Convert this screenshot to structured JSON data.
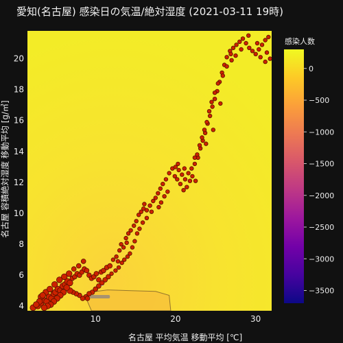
{
  "chart_data": {
    "type": "scatter",
    "title": "愛知(名古屋) 感染日の気温/絶対湿度 (2021-03-11 19時)",
    "xlabel": "名古屋 平均気温 移動平均 [℃]",
    "ylabel": "名古屋 容積絶対湿度 移動平均 [g/㎥]",
    "xlim": [
      1.5,
      32
    ],
    "ylim": [
      3.7,
      21.8
    ],
    "x_ticks": [
      10,
      20,
      30
    ],
    "y_ticks": [
      4,
      6,
      8,
      10,
      12,
      14,
      16,
      18,
      20
    ],
    "grid": false,
    "background_contour": {
      "type": "contour",
      "colorscale": [
        "#0d0887",
        "#46039f",
        "#7201a8",
        "#9c179e",
        "#bd3786",
        "#d8576b",
        "#ed7953",
        "#fb9f3a",
        "#fdca26",
        "#f0f921"
      ],
      "zmin": -3700,
      "zmax": 300,
      "colorbar_title": "感染人数",
      "colorbar_ticks": [
        0,
        -500,
        -1000,
        -1500,
        -2000,
        -2500,
        -3000,
        -3500
      ],
      "contour_label": "0"
    },
    "marker_color": "#cc2200",
    "marker_edge": "#551100",
    "points": [
      [
        2.2,
        3.9
      ],
      [
        2.8,
        4.0
      ],
      [
        3.2,
        4.2
      ],
      [
        3.5,
        4.4
      ],
      [
        3.9,
        4.3
      ],
      [
        4.2,
        4.6
      ],
      [
        4.5,
        4.5
      ],
      [
        4.8,
        4.8
      ],
      [
        5.0,
        4.9
      ],
      [
        5.3,
        5.1
      ],
      [
        5.6,
        5.0
      ],
      [
        5.9,
        5.3
      ],
      [
        6.2,
        5.4
      ],
      [
        6.5,
        5.6
      ],
      [
        6.8,
        5.5
      ],
      [
        7.1,
        5.8
      ],
      [
        7.4,
        5.9
      ],
      [
        7.7,
        6.1
      ],
      [
        8.0,
        6.0
      ],
      [
        8.3,
        6.2
      ],
      [
        8.6,
        6.4
      ],
      [
        8.9,
        6.3
      ],
      [
        9.2,
        6.0
      ],
      [
        9.5,
        5.8
      ],
      [
        9.8,
        5.9
      ],
      [
        10.1,
        6.1
      ],
      [
        10.4,
        5.7
      ],
      [
        10.7,
        6.2
      ],
      [
        11.0,
        6.3
      ],
      [
        11.4,
        6.5
      ],
      [
        11.8,
        6.6
      ],
      [
        12.2,
        7.0
      ],
      [
        12.6,
        7.2
      ],
      [
        13.0,
        7.6
      ],
      [
        13.2,
        8.0
      ],
      [
        13.5,
        7.8
      ],
      [
        13.8,
        8.4
      ],
      [
        14.1,
        8.7
      ],
      [
        14.4,
        8.9
      ],
      [
        14.8,
        9.2
      ],
      [
        15.1,
        9.5
      ],
      [
        15.4,
        9.9
      ],
      [
        15.7,
        10.1
      ],
      [
        16.0,
        10.3
      ],
      [
        16.4,
        10.2
      ],
      [
        16.8,
        10.5
      ],
      [
        17.2,
        10.8
      ],
      [
        17.5,
        11.0
      ],
      [
        17.8,
        11.3
      ],
      [
        18.1,
        11.6
      ],
      [
        18.4,
        11.9
      ],
      [
        18.8,
        12.2
      ],
      [
        19.2,
        12.6
      ],
      [
        19.6,
        12.9
      ],
      [
        20.0,
        13.0
      ],
      [
        20.4,
        12.8
      ],
      [
        20.8,
        12.5
      ],
      [
        21.2,
        12.2
      ],
      [
        21.6,
        12.6
      ],
      [
        22.0,
        12.9
      ],
      [
        22.4,
        13.2
      ],
      [
        22.8,
        13.6
      ],
      [
        23.1,
        14.2
      ],
      [
        23.4,
        14.7
      ],
      [
        23.7,
        15.2
      ],
      [
        24.0,
        15.8
      ],
      [
        24.3,
        16.3
      ],
      [
        24.6,
        16.9
      ],
      [
        24.9,
        17.4
      ],
      [
        25.2,
        17.9
      ],
      [
        25.5,
        18.5
      ],
      [
        25.8,
        19.1
      ],
      [
        26.1,
        19.6
      ],
      [
        26.4,
        20.1
      ],
      [
        26.8,
        20.5
      ],
      [
        27.2,
        20.7
      ],
      [
        27.6,
        20.9
      ],
      [
        28.0,
        21.1
      ],
      [
        28.4,
        21.3
      ],
      [
        28.8,
        21.0
      ],
      [
        29.2,
        20.7
      ],
      [
        29.6,
        20.5
      ],
      [
        30.0,
        20.3
      ],
      [
        30.4,
        20.6
      ],
      [
        30.8,
        20.9
      ],
      [
        31.2,
        21.2
      ],
      [
        31.6,
        21.4
      ],
      [
        31.8,
        20.0
      ],
      [
        31.2,
        19.8
      ],
      [
        30.6,
        20.1
      ],
      [
        27.5,
        20.2
      ],
      [
        27.0,
        19.9
      ],
      [
        26.4,
        19.5
      ],
      [
        25.9,
        18.9
      ],
      [
        25.3,
        18.4
      ],
      [
        24.9,
        17.8
      ],
      [
        24.5,
        17.2
      ],
      [
        24.2,
        16.6
      ],
      [
        23.9,
        15.9
      ],
      [
        23.6,
        15.4
      ],
      [
        23.3,
        14.9
      ],
      [
        23.0,
        14.4
      ],
      [
        22.7,
        13.8
      ],
      [
        22.4,
        13.6
      ],
      [
        22.1,
        12.4
      ],
      [
        21.8,
        12.1
      ],
      [
        21.4,
        11.7
      ],
      [
        21.0,
        11.5
      ],
      [
        20.6,
        11.9
      ],
      [
        20.2,
        12.2
      ],
      [
        19.9,
        12.4
      ],
      [
        19.0,
        11.4
      ],
      [
        18.6,
        11.1
      ],
      [
        18.2,
        10.7
      ],
      [
        17.9,
        10.4
      ],
      [
        16.4,
        9.7
      ],
      [
        15.9,
        9.4
      ],
      [
        15.5,
        9.0
      ],
      [
        15.2,
        8.7
      ],
      [
        14.9,
        8.2
      ],
      [
        14.6,
        7.8
      ],
      [
        14.3,
        7.4
      ],
      [
        14.0,
        7.2
      ],
      [
        13.6,
        7.0
      ],
      [
        13.3,
        6.8
      ],
      [
        12.9,
        6.5
      ],
      [
        12.5,
        6.3
      ],
      [
        12.0,
        6.1
      ],
      [
        11.6,
        5.9
      ],
      [
        11.2,
        5.7
      ],
      [
        10.8,
        5.5
      ],
      [
        10.4,
        5.3
      ],
      [
        10.0,
        5.1
      ],
      [
        9.6,
        4.9
      ],
      [
        9.2,
        4.8
      ],
      [
        8.8,
        4.6
      ],
      [
        8.4,
        4.5
      ],
      [
        8.0,
        4.7
      ],
      [
        7.6,
        4.8
      ],
      [
        7.2,
        4.9
      ],
      [
        6.8,
        5.0
      ],
      [
        6.4,
        5.2
      ],
      [
        6.0,
        4.9
      ],
      [
        5.6,
        4.7
      ],
      [
        5.2,
        4.5
      ],
      [
        4.8,
        4.3
      ],
      [
        4.4,
        4.1
      ],
      [
        4.0,
        4.0
      ],
      [
        3.6,
        3.9
      ],
      [
        3.2,
        4.6
      ],
      [
        3.8,
        4.9
      ],
      [
        4.3,
        5.1
      ],
      [
        4.9,
        5.4
      ],
      [
        5.5,
        5.7
      ],
      [
        6.1,
        5.9
      ],
      [
        6.7,
        6.1
      ],
      [
        7.3,
        6.4
      ],
      [
        7.9,
        6.6
      ],
      [
        8.5,
        6.9
      ],
      [
        3.0,
        4.3
      ],
      [
        3.4,
        4.7
      ],
      [
        2.6,
        4.1
      ],
      [
        9.0,
        4.5
      ],
      [
        12.8,
        6.9
      ],
      [
        13.9,
        8.1
      ],
      [
        16.1,
        10.6
      ],
      [
        17.0,
        10.1
      ],
      [
        20.3,
        13.2
      ],
      [
        21.1,
        12.9
      ],
      [
        22.5,
        12.1
      ],
      [
        23.8,
        14.5
      ],
      [
        24.7,
        15.4
      ],
      [
        25.6,
        17.1
      ],
      [
        26.9,
        20.3
      ],
      [
        28.2,
        20.6
      ],
      [
        29.1,
        21.5
      ],
      [
        30.2,
        21.0
      ],
      [
        31.4,
        20.4
      ]
    ]
  }
}
